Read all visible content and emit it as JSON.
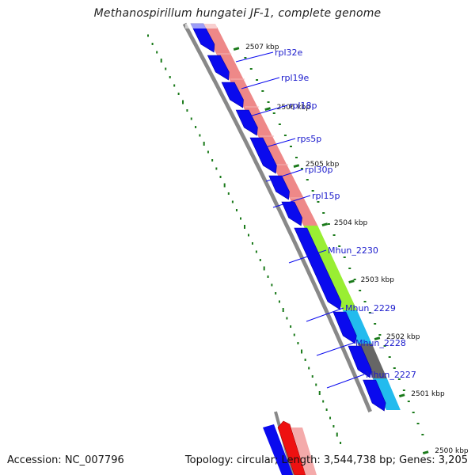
{
  "title": "Methanospirillum hungatei JF-1, complete genome",
  "footer": {
    "accession": "Accession: NC_007796",
    "topology": "Topology: circular; Length: 3,544,738 bp; Genes: 3,205"
  },
  "colors": {
    "cds_forward": "#0a0aee",
    "ribosomal": "#ee8888",
    "mhun_2230": "#99ee33",
    "mhun_2229": "#22bbee",
    "mhun_2228": "#666666",
    "mhun_2227": "#22bbee",
    "backbone": "#888888",
    "tick": "#1a7a1a",
    "red_feature": "#ee1111"
  },
  "ticks": [
    "2507 kbp",
    "2506 kbp",
    "2505 kbp",
    "2504 kbp",
    "2503 kbp",
    "2502 kbp",
    "2501 kbp",
    "2500 kbp"
  ],
  "genes": [
    "rpl32e",
    "rpl19e",
    "rpl18p",
    "rps5p",
    "rpl30p",
    "rpl15p",
    "Mhun_2230",
    "Mhun_2229",
    "Mhun_2228",
    "Mhun_2227"
  ]
}
